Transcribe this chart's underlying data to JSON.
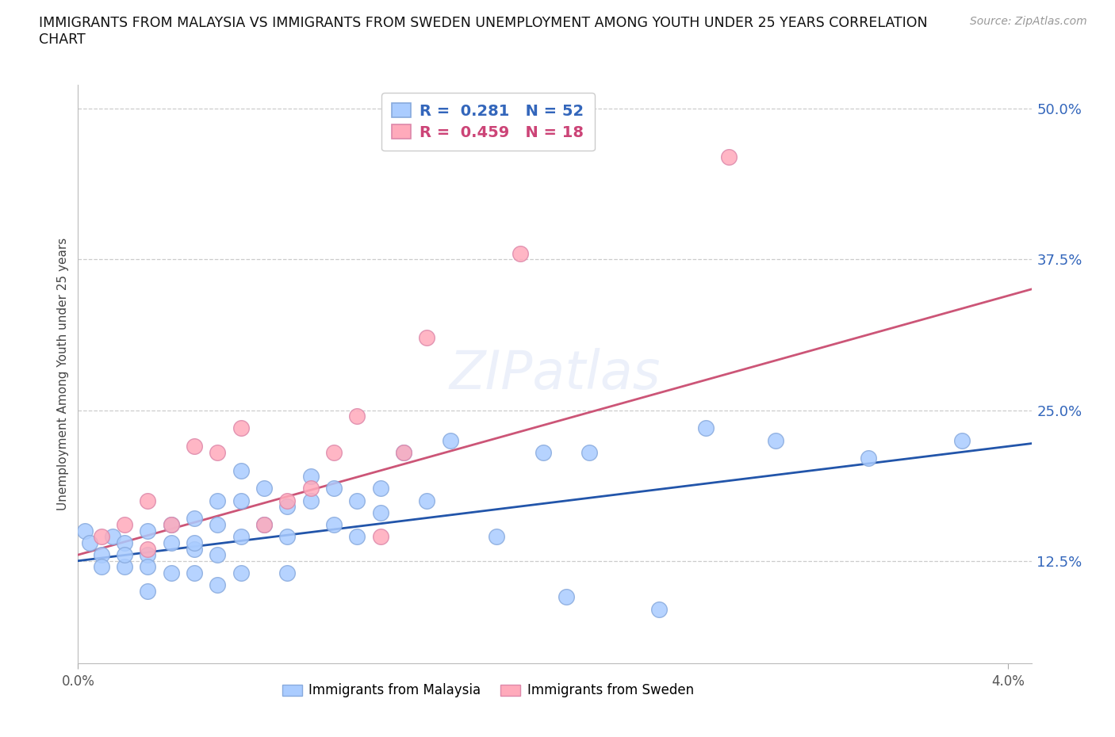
{
  "title_line1": "IMMIGRANTS FROM MALAYSIA VS IMMIGRANTS FROM SWEDEN UNEMPLOYMENT AMONG YOUTH UNDER 25 YEARS CORRELATION",
  "title_line2": "CHART",
  "source": "Source: ZipAtlas.com",
  "ylabel": "Unemployment Among Youth under 25 years",
  "watermark": "ZIPatlas",
  "xlim": [
    0.0,
    0.041
  ],
  "ylim": [
    0.04,
    0.52
  ],
  "yticks": [
    0.125,
    0.25,
    0.375,
    0.5
  ],
  "ytick_labels": [
    "12.5%",
    "25.0%",
    "37.5%",
    "50.0%"
  ],
  "malaysia_color": "#AACCFF",
  "malaysia_edge": "#88AADD",
  "sweden_color": "#FFAABB",
  "sweden_edge": "#DD88AA",
  "malaysia_line_color": "#2255AA",
  "sweden_line_color": "#CC5577",
  "malaysia_R": 0.281,
  "malaysia_N": 52,
  "sweden_R": 0.459,
  "sweden_N": 18,
  "malaysia_x": [
    0.0003,
    0.0005,
    0.001,
    0.001,
    0.0015,
    0.002,
    0.002,
    0.002,
    0.003,
    0.003,
    0.003,
    0.003,
    0.004,
    0.004,
    0.004,
    0.005,
    0.005,
    0.005,
    0.005,
    0.006,
    0.006,
    0.006,
    0.006,
    0.007,
    0.007,
    0.007,
    0.007,
    0.008,
    0.008,
    0.009,
    0.009,
    0.009,
    0.01,
    0.01,
    0.011,
    0.011,
    0.012,
    0.012,
    0.013,
    0.013,
    0.014,
    0.015,
    0.016,
    0.018,
    0.02,
    0.021,
    0.022,
    0.025,
    0.027,
    0.03,
    0.034,
    0.038
  ],
  "malaysia_y": [
    0.15,
    0.14,
    0.13,
    0.12,
    0.145,
    0.14,
    0.12,
    0.13,
    0.15,
    0.13,
    0.12,
    0.1,
    0.155,
    0.14,
    0.115,
    0.16,
    0.135,
    0.14,
    0.115,
    0.175,
    0.155,
    0.13,
    0.105,
    0.2,
    0.175,
    0.145,
    0.115,
    0.185,
    0.155,
    0.17,
    0.145,
    0.115,
    0.195,
    0.175,
    0.185,
    0.155,
    0.175,
    0.145,
    0.185,
    0.165,
    0.215,
    0.175,
    0.225,
    0.145,
    0.215,
    0.095,
    0.215,
    0.085,
    0.235,
    0.225,
    0.21,
    0.225
  ],
  "sweden_x": [
    0.001,
    0.002,
    0.003,
    0.003,
    0.004,
    0.005,
    0.006,
    0.007,
    0.008,
    0.009,
    0.01,
    0.011,
    0.012,
    0.013,
    0.014,
    0.015,
    0.019,
    0.028
  ],
  "sweden_y": [
    0.145,
    0.155,
    0.175,
    0.135,
    0.155,
    0.22,
    0.215,
    0.235,
    0.155,
    0.175,
    0.185,
    0.215,
    0.245,
    0.145,
    0.215,
    0.31,
    0.38,
    0.46
  ]
}
